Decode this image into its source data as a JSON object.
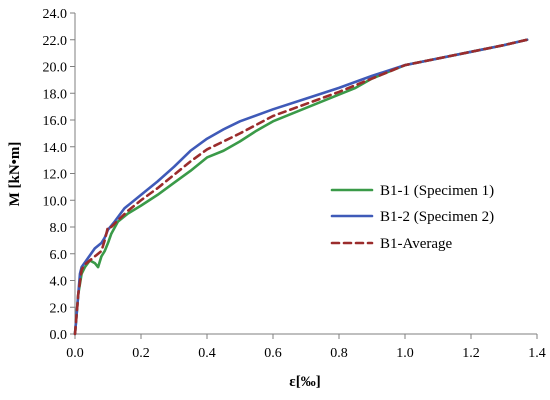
{
  "chart_data": {
    "type": "line",
    "title": "",
    "xlabel": "ε[‰]",
    "ylabel": "M [kN•m]",
    "xlim": [
      0.0,
      1.4
    ],
    "ylim": [
      0.0,
      24.0
    ],
    "xticks": [
      0.0,
      0.2,
      0.4,
      0.6,
      0.8,
      1.0,
      1.2,
      1.4
    ],
    "yticks": [
      0.0,
      2.0,
      4.0,
      6.0,
      8.0,
      10.0,
      12.0,
      14.0,
      16.0,
      18.0,
      20.0,
      22.0,
      24.0
    ],
    "tick_decimals": 1,
    "grid": false,
    "legend_position": "center-right",
    "series": [
      {
        "name": "B1-1 (Specimen 1)",
        "color": "#3a9a48",
        "style": "solid",
        "points": [
          [
            0,
            0
          ],
          [
            0.005,
            1.5
          ],
          [
            0.01,
            3.0
          ],
          [
            0.02,
            4.5
          ],
          [
            0.03,
            5.0
          ],
          [
            0.045,
            5.5
          ],
          [
            0.06,
            5.3
          ],
          [
            0.07,
            5.0
          ],
          [
            0.08,
            5.8
          ],
          [
            0.09,
            6.2
          ],
          [
            0.1,
            6.8
          ],
          [
            0.11,
            7.5
          ],
          [
            0.13,
            8.4
          ],
          [
            0.16,
            9.0
          ],
          [
            0.2,
            9.6
          ],
          [
            0.25,
            10.4
          ],
          [
            0.3,
            11.3
          ],
          [
            0.35,
            12.2
          ],
          [
            0.4,
            13.2
          ],
          [
            0.45,
            13.7
          ],
          [
            0.5,
            14.4
          ],
          [
            0.55,
            15.2
          ],
          [
            0.6,
            15.9
          ],
          [
            0.7,
            16.9
          ],
          [
            0.8,
            17.9
          ],
          [
            0.85,
            18.4
          ],
          [
            0.9,
            19.1
          ],
          [
            0.95,
            19.6
          ],
          [
            1.0,
            20.1
          ],
          [
            1.1,
            20.6
          ],
          [
            1.2,
            21.1
          ],
          [
            1.3,
            21.6
          ],
          [
            1.37,
            22.0
          ]
        ]
      },
      {
        "name": "B1-2 (Specimen 2)",
        "color": "#3f5ab8",
        "style": "solid",
        "points": [
          [
            0,
            0
          ],
          [
            0.005,
            1.5
          ],
          [
            0.01,
            3.0
          ],
          [
            0.015,
            4.5
          ],
          [
            0.02,
            5.0
          ],
          [
            0.04,
            5.7
          ],
          [
            0.06,
            6.4
          ],
          [
            0.08,
            6.8
          ],
          [
            0.09,
            7.2
          ],
          [
            0.1,
            7.8
          ],
          [
            0.12,
            8.4
          ],
          [
            0.15,
            9.4
          ],
          [
            0.2,
            10.4
          ],
          [
            0.25,
            11.4
          ],
          [
            0.3,
            12.5
          ],
          [
            0.35,
            13.7
          ],
          [
            0.4,
            14.6
          ],
          [
            0.45,
            15.3
          ],
          [
            0.5,
            15.9
          ],
          [
            0.6,
            16.8
          ],
          [
            0.7,
            17.6
          ],
          [
            0.8,
            18.4
          ],
          [
            0.9,
            19.3
          ],
          [
            1.0,
            20.1
          ],
          [
            1.1,
            20.6
          ],
          [
            1.2,
            21.1
          ],
          [
            1.3,
            21.6
          ],
          [
            1.37,
            22.0
          ]
        ]
      },
      {
        "name": "B1-Average",
        "color": "#9b2c2c",
        "style": "dashed",
        "points": [
          [
            0,
            0
          ],
          [
            0.005,
            1.5
          ],
          [
            0.01,
            3.0
          ],
          [
            0.02,
            4.8
          ],
          [
            0.03,
            5.2
          ],
          [
            0.05,
            5.6
          ],
          [
            0.065,
            5.9
          ],
          [
            0.08,
            6.2
          ],
          [
            0.09,
            7.0
          ],
          [
            0.1,
            8.0
          ],
          [
            0.11,
            8.0
          ],
          [
            0.13,
            8.5
          ],
          [
            0.16,
            9.2
          ],
          [
            0.2,
            10.0
          ],
          [
            0.25,
            10.9
          ],
          [
            0.3,
            11.9
          ],
          [
            0.35,
            12.9
          ],
          [
            0.4,
            13.8
          ],
          [
            0.45,
            14.4
          ],
          [
            0.5,
            15.0
          ],
          [
            0.6,
            16.3
          ],
          [
            0.7,
            17.2
          ],
          [
            0.8,
            18.1
          ],
          [
            0.9,
            19.1
          ],
          [
            1.0,
            20.1
          ],
          [
            1.1,
            20.6
          ],
          [
            1.2,
            21.1
          ],
          [
            1.3,
            21.6
          ],
          [
            1.37,
            22.0
          ]
        ]
      }
    ]
  }
}
